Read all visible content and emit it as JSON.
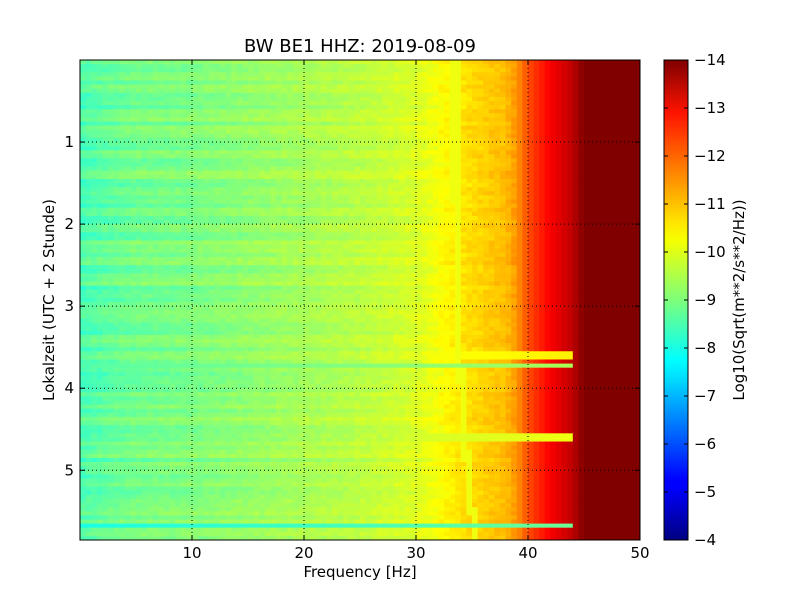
{
  "chart_data": {
    "type": "heatmap",
    "title": "BW BE1 HHZ: 2019-08-09",
    "xlabel": "Frequency [Hz]",
    "ylabel": "Lokalzeit (UTC + 2 Stunde)",
    "xlim": [
      0,
      50
    ],
    "ylim": [
      5.85,
      0
    ],
    "x_ticks": [
      10,
      20,
      30,
      40,
      50
    ],
    "x_tick_labels": [
      "10",
      "20",
      "30",
      "40",
      "50"
    ],
    "y_ticks": [
      1,
      2,
      3,
      4,
      5
    ],
    "y_tick_labels": [
      "1",
      "2",
      "3",
      "4",
      "5"
    ],
    "grid": true,
    "colormap": "jet",
    "colorbar": {
      "label": "Log10(Sqrt(m**2/s**2/Hz))",
      "range": [
        -14,
        -4
      ],
      "ticks": [
        -4,
        -5,
        -6,
        -7,
        -8,
        -9,
        -10,
        -11,
        -12,
        -13,
        -14
      ],
      "tick_labels": [
        "−4",
        "−5",
        "−6",
        "−7",
        "−8",
        "−9",
        "−10",
        "−11",
        "−12",
        "−13",
        "−14"
      ]
    },
    "frequency_profile": {
      "frequency_hz": [
        0,
        2,
        5,
        10,
        15,
        20,
        25,
        30,
        32,
        34,
        36,
        38,
        39,
        40,
        42,
        44,
        45,
        50
      ],
      "log10_amplitude": [
        -8.5,
        -8.7,
        -8.9,
        -9.0,
        -9.2,
        -9.4,
        -9.6,
        -9.9,
        -10.2,
        -10.5,
        -10.7,
        -10.9,
        -11.3,
        -12.0,
        -12.8,
        -13.4,
        -14.0,
        -14.0
      ]
    },
    "spectral_line": {
      "start_frequency_hz": 33.5,
      "end_frequency_hz": 35.3,
      "log10_amplitude": -10.1
    },
    "bright_bands": [
      {
        "time_h": 3.6,
        "log10_amplitude": -9.6
      },
      {
        "time_h": 3.73,
        "log10_amplitude": -8.6
      },
      {
        "time_h": 4.6,
        "log10_amplitude": -9.3
      },
      {
        "time_h": 5.67,
        "log10_amplitude": -8.0
      }
    ]
  }
}
